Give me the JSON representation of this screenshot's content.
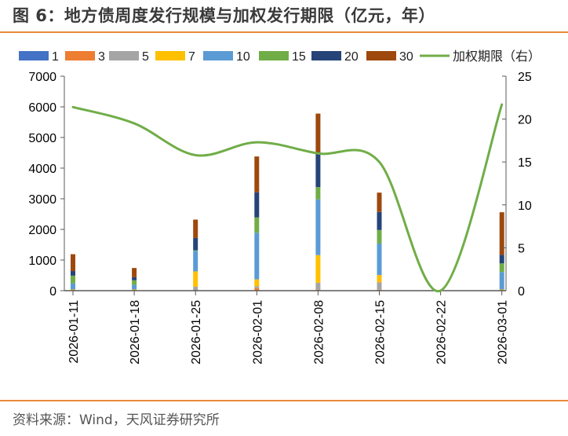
{
  "header": {
    "title": "图 6：地方债周度发行规模与加权发行期限（亿元，年）"
  },
  "footer": {
    "source": "资料来源：Wind，天风证券研究所"
  },
  "colors": {
    "rule": "#e8893a",
    "series": {
      "1": "#4472c4",
      "3": "#ed7d31",
      "5": "#a5a5a5",
      "7": "#ffc000",
      "10": "#5b9bd5",
      "15": "#70ad47",
      "20": "#264478",
      "30": "#9e480e",
      "line": "#70ad47"
    }
  },
  "chart_data": {
    "type": "bar",
    "subtype": "stacked bar + line (dual axis)",
    "title": "图 6：地方债周度发行规模与加权发行期限（亿元，年）",
    "categories": [
      "2026-01-11",
      "2026-01-18",
      "2026-01-25",
      "2026-02-01",
      "2026-02-08",
      "2026-02-15",
      "2026-02-22",
      "2026-03-01"
    ],
    "series": [
      {
        "name": "1",
        "axis": "left",
        "type": "bar",
        "values": [
          10,
          0,
          0,
          0,
          0,
          0,
          0,
          0
        ]
      },
      {
        "name": "3",
        "axis": "left",
        "type": "bar",
        "values": [
          0,
          0,
          0,
          80,
          30,
          30,
          0,
          0
        ]
      },
      {
        "name": "5",
        "axis": "left",
        "type": "bar",
        "values": [
          0,
          0,
          130,
          60,
          230,
          240,
          0,
          0
        ]
      },
      {
        "name": "7",
        "axis": "left",
        "type": "bar",
        "values": [
          30,
          40,
          500,
          230,
          900,
          240,
          0,
          40
        ]
      },
      {
        "name": "10",
        "axis": "left",
        "type": "bar",
        "values": [
          200,
          150,
          670,
          1520,
          1820,
          1030,
          0,
          570
        ]
      },
      {
        "name": "15",
        "axis": "left",
        "type": "bar",
        "values": [
          250,
          150,
          20,
          500,
          400,
          440,
          0,
          280
        ]
      },
      {
        "name": "20",
        "axis": "left",
        "type": "bar",
        "values": [
          150,
          100,
          400,
          820,
          1120,
          590,
          0,
          280
        ]
      },
      {
        "name": "30",
        "axis": "left",
        "type": "bar",
        "values": [
          550,
          300,
          600,
          1170,
          1280,
          630,
          0,
          1390
        ]
      },
      {
        "name": "加权期限（右）",
        "axis": "right",
        "type": "line",
        "smooth": true,
        "values": [
          21.4,
          19.5,
          15.8,
          17.3,
          16.0,
          15.0,
          0,
          21.7
        ]
      }
    ],
    "legend": [
      "1",
      "3",
      "5",
      "7",
      "10",
      "15",
      "20",
      "30",
      "加权期限（右）"
    ],
    "legend_position": "top",
    "xlabel": "",
    "ylabel": "",
    "ylim": [
      0,
      7000
    ],
    "yticks": [
      0,
      1000,
      2000,
      3000,
      4000,
      5000,
      6000,
      7000
    ],
    "y2lim": [
      0,
      25
    ],
    "y2ticks": [
      0,
      5,
      10,
      15,
      20,
      25
    ],
    "grid": false
  }
}
